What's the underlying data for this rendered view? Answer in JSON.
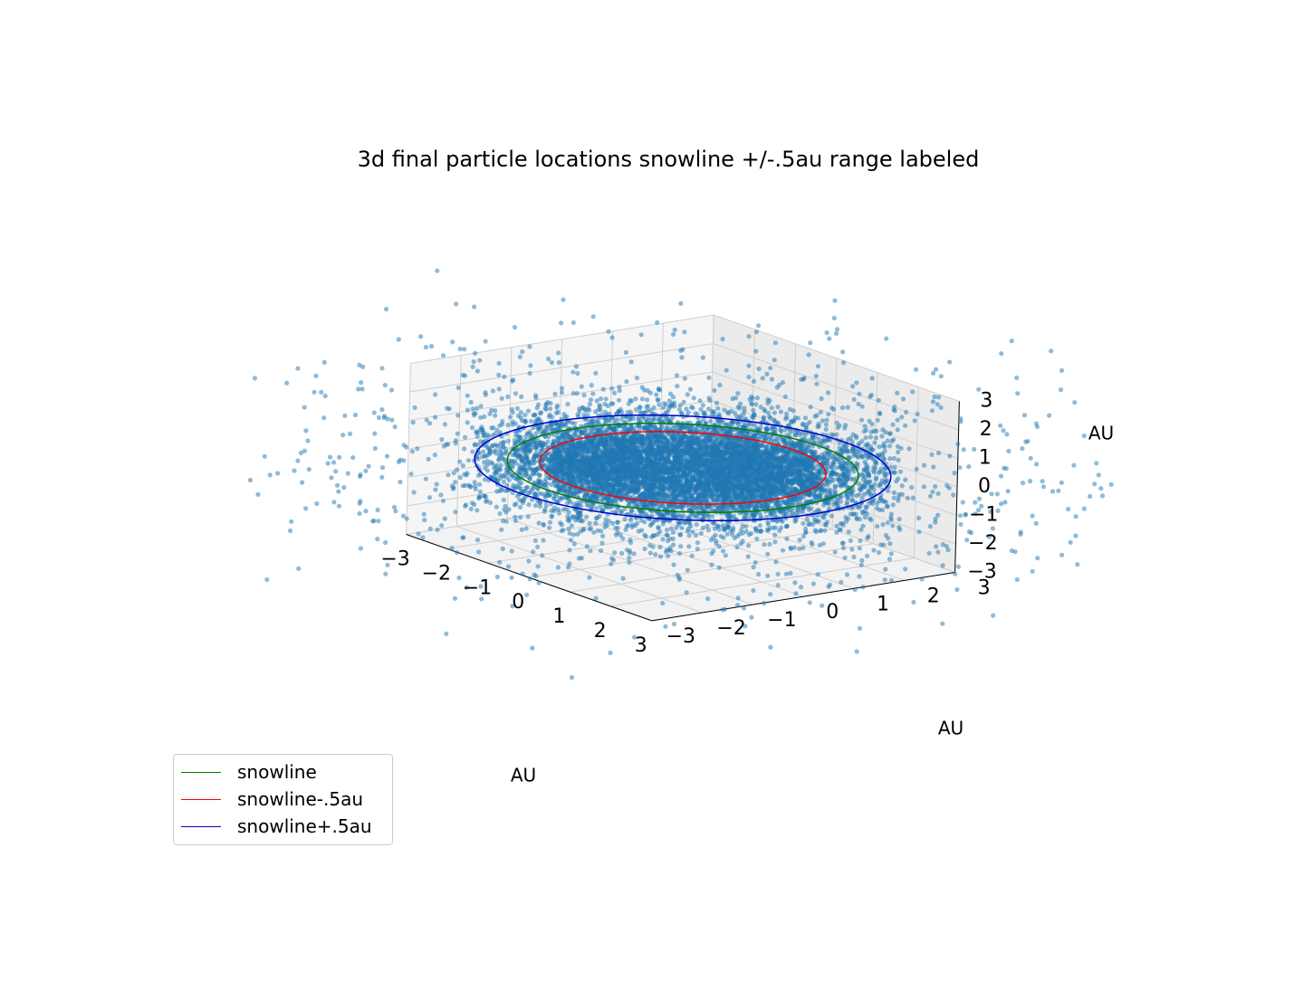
{
  "chart_data": {
    "type": "scatter3d",
    "title": "3d final particle locations snowline +/-.5au range labeled",
    "xlabel": "AU",
    "ylabel": "AU",
    "zlabel": "AU",
    "xlim": [
      -3,
      3
    ],
    "ylim": [
      -3,
      3
    ],
    "zlim": [
      -3,
      3
    ],
    "ticks": [
      -3,
      -2,
      -1,
      0,
      1,
      2,
      3
    ],
    "tick_labels": [
      "−3",
      "−2",
      "−1",
      "0",
      "1",
      "2",
      "3"
    ],
    "grid": true,
    "legend_position": "lower-left",
    "point_color": "#1f77b4",
    "series": [
      {
        "name": "snowline",
        "type": "circle",
        "radius": 2.7,
        "z": 0,
        "color": "#008000"
      },
      {
        "name": "snowline-.5au",
        "type": "circle",
        "radius": 2.2,
        "z": 0,
        "color": "#ff0000"
      },
      {
        "name": "snowline+.5au",
        "type": "circle",
        "radius": 3.2,
        "z": 0,
        "color": "#0000cd"
      }
    ],
    "scatter": {
      "description_count": 9000,
      "core_radius_range": [
        0.3,
        3.4
      ],
      "z_spread": 0.6
    }
  }
}
